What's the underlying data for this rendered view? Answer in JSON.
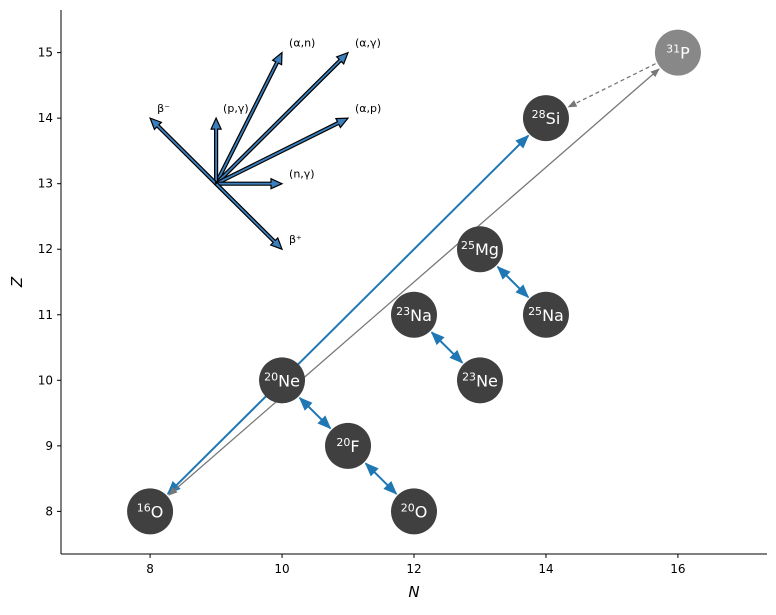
{
  "chart_data": {
    "type": "network",
    "xlabel": "N",
    "ylabel": "Z",
    "xlim": [
      6.65,
      17.35
    ],
    "ylim": [
      7.35,
      15.65
    ],
    "xticks": [
      "8",
      "10",
      "12",
      "14",
      "16"
    ],
    "yticks": [
      "8",
      "9",
      "10",
      "11",
      "12",
      "13",
      "14",
      "15"
    ],
    "grid": false,
    "nuclei": [
      {
        "mass": "16",
        "symbol": "O",
        "n": 8,
        "z": 8,
        "color": "#404040"
      },
      {
        "mass": "20",
        "symbol": "O",
        "n": 12,
        "z": 8,
        "color": "#404040"
      },
      {
        "mass": "20",
        "symbol": "F",
        "n": 11,
        "z": 9,
        "color": "#404040"
      },
      {
        "mass": "20",
        "symbol": "Ne",
        "n": 10,
        "z": 10,
        "color": "#404040"
      },
      {
        "mass": "23",
        "symbol": "Ne",
        "n": 13,
        "z": 10,
        "color": "#404040"
      },
      {
        "mass": "23",
        "symbol": "Na",
        "n": 12,
        "z": 11,
        "color": "#404040"
      },
      {
        "mass": "25",
        "symbol": "Na",
        "n": 14,
        "z": 11,
        "color": "#404040"
      },
      {
        "mass": "25",
        "symbol": "Mg",
        "n": 13,
        "z": 12,
        "color": "#404040"
      },
      {
        "mass": "28",
        "symbol": "Si",
        "n": 14,
        "z": 14,
        "color": "#404040"
      },
      {
        "mass": "31",
        "symbol": "P",
        "n": 16,
        "z": 15,
        "color": "#888888"
      }
    ],
    "links": [
      {
        "from": [
          8,
          8
        ],
        "to": [
          14,
          14
        ],
        "style": "solid",
        "color": "#1f77b4",
        "heads": "both"
      },
      {
        "from": [
          8,
          8
        ],
        "to": [
          16,
          15
        ],
        "style": "solid",
        "color": "#777777",
        "heads": "both"
      },
      {
        "from": [
          16,
          15
        ],
        "to": [
          14,
          14
        ],
        "style": "dashed",
        "color": "#777777",
        "heads": "end"
      },
      {
        "from": [
          10,
          10
        ],
        "to": [
          11,
          9
        ],
        "style": "solid",
        "color": "#1f77b4",
        "heads": "both"
      },
      {
        "from": [
          11,
          9
        ],
        "to": [
          12,
          8
        ],
        "style": "solid",
        "color": "#1f77b4",
        "heads": "both"
      },
      {
        "from": [
          12,
          11
        ],
        "to": [
          13,
          10
        ],
        "style": "solid",
        "color": "#1f77b4",
        "heads": "both"
      },
      {
        "from": [
          13,
          12
        ],
        "to": [
          14,
          11
        ],
        "style": "solid",
        "color": "#1f77b4",
        "heads": "both"
      }
    ],
    "rate_legend": {
      "origin": [
        9,
        13
      ],
      "fill": "#3b80bd",
      "arrows": [
        {
          "label": "(α,n)",
          "to": [
            10,
            15
          ]
        },
        {
          "label": "(α,γ)",
          "to": [
            11,
            15
          ]
        },
        {
          "label": "(p,γ)",
          "to": [
            9,
            14
          ]
        },
        {
          "label": "β⁻",
          "to": [
            8,
            14
          ]
        },
        {
          "label": "(α,p)",
          "to": [
            11,
            14
          ]
        },
        {
          "label": "(n,γ)",
          "to": [
            10,
            13
          ]
        },
        {
          "label": "β⁺",
          "to": [
            10,
            12
          ]
        }
      ]
    }
  }
}
